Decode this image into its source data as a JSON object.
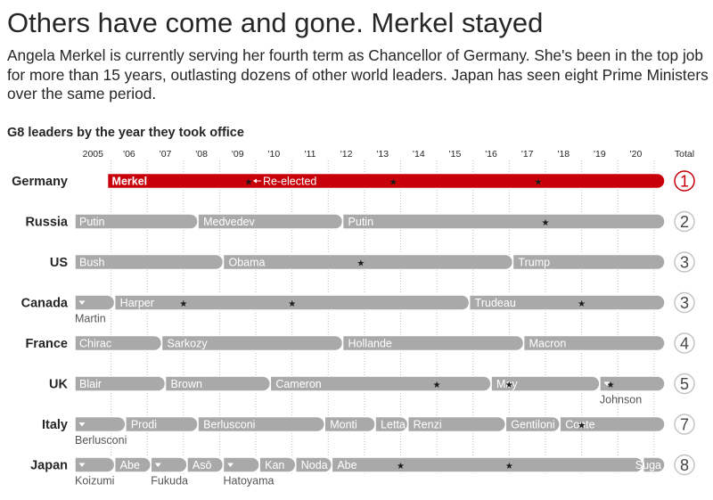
{
  "title": "Others have come and gone. Merkel stayed",
  "subtitle": "Angela Merkel is currently serving her fourth term as Chancellor of Germany. She's been in the top job for more than 15 years, outlasting dozens of other world leaders. Japan has seen eight Prime Ministers over the same period.",
  "chart_label": "G8 leaders by the year they took office",
  "colors": {
    "highlight": "#c8000a",
    "bar": "#a9a9a9",
    "text": "#262626",
    "grid": "#bdbdbd",
    "sublabel": "#555555"
  },
  "chart_data": {
    "type": "timeline",
    "x_ticks": [
      "2005",
      "'06",
      "'07",
      "'08",
      "'09",
      "'10",
      "'11",
      "'12",
      "'13",
      "'14",
      "'15",
      "'16",
      "'17",
      "'18",
      "'19",
      "'20"
    ],
    "total_header": "Total",
    "xlim": [
      2005.0,
      2021.3
    ],
    "star_symbol": "★",
    "reelected_label": "Re-elected",
    "countries": [
      {
        "name": "Germany",
        "total": "1",
        "highlight": true,
        "leaders": [
          {
            "name": "Merkel",
            "start": 2005.9,
            "end": 2021.3
          }
        ],
        "stars": [
          2009.8,
          2013.8,
          2017.8
        ],
        "reelected_at": 2009.8
      },
      {
        "name": "Russia",
        "total": "2",
        "leaders": [
          {
            "name": "Putin",
            "start": 2005.0,
            "end": 2008.4
          },
          {
            "name": "Medvedev",
            "start": 2008.4,
            "end": 2012.4
          },
          {
            "name": "Putin",
            "start": 2012.4,
            "end": 2021.3
          }
        ],
        "stars": [
          2018.0
        ]
      },
      {
        "name": "US",
        "total": "3",
        "leaders": [
          {
            "name": "Bush",
            "start": 2005.0,
            "end": 2009.1
          },
          {
            "name": "Obama",
            "start": 2009.1,
            "end": 2017.1
          },
          {
            "name": "Trump",
            "start": 2017.1,
            "end": 2021.3
          }
        ],
        "stars": [
          2012.9
        ]
      },
      {
        "name": "Canada",
        "total": "3",
        "leaders": [
          {
            "name": "",
            "start": 2005.0,
            "end": 2006.1,
            "below": "Martin"
          },
          {
            "name": "Harper",
            "start": 2006.1,
            "end": 2015.9
          },
          {
            "name": "Trudeau",
            "start": 2015.9,
            "end": 2021.3
          }
        ],
        "stars": [
          2008.0,
          2011.0,
          2019.0
        ]
      },
      {
        "name": "France",
        "total": "4",
        "leaders": [
          {
            "name": "Chirac",
            "start": 2005.0,
            "end": 2007.4
          },
          {
            "name": "Sarkozy",
            "start": 2007.4,
            "end": 2012.4
          },
          {
            "name": "Hollande",
            "start": 2012.4,
            "end": 2017.4
          },
          {
            "name": "Macron",
            "start": 2017.4,
            "end": 2021.3
          }
        ],
        "stars": []
      },
      {
        "name": "UK",
        "total": "5",
        "leaders": [
          {
            "name": "Blair",
            "start": 2005.0,
            "end": 2007.5
          },
          {
            "name": "Brown",
            "start": 2007.5,
            "end": 2010.4
          },
          {
            "name": "Cameron",
            "start": 2010.4,
            "end": 2016.5
          },
          {
            "name": "May",
            "start": 2016.5,
            "end": 2019.5
          },
          {
            "name": "",
            "start": 2019.5,
            "end": 2021.3,
            "below": "Johnson"
          }
        ],
        "stars": [
          2015.0,
          2017.0,
          2019.8
        ]
      },
      {
        "name": "Italy",
        "total": "7",
        "leaders": [
          {
            "name": "",
            "start": 2005.0,
            "end": 2006.4,
            "below": "Berlusconi"
          },
          {
            "name": "Prodi",
            "start": 2006.4,
            "end": 2008.4
          },
          {
            "name": "Berlusconi",
            "start": 2008.4,
            "end": 2011.9
          },
          {
            "name": "Monti",
            "start": 2011.9,
            "end": 2013.3
          },
          {
            "name": "Letta",
            "start": 2013.3,
            "end": 2014.2
          },
          {
            "name": "Renzi",
            "start": 2014.2,
            "end": 2016.9
          },
          {
            "name": "Gentiloni",
            "start": 2016.9,
            "end": 2018.4
          },
          {
            "name": "Conte",
            "start": 2018.4,
            "end": 2021.3
          }
        ],
        "stars": [
          2019.0
        ]
      },
      {
        "name": "Japan",
        "total": "8",
        "leaders": [
          {
            "name": "",
            "start": 2005.0,
            "end": 2006.1,
            "below": "Koizumi"
          },
          {
            "name": "Abe",
            "start": 2006.1,
            "end": 2007.1
          },
          {
            "name": "",
            "start": 2007.1,
            "end": 2008.1,
            "below": "Fukuda"
          },
          {
            "name": "Asō",
            "start": 2008.1,
            "end": 2009.1
          },
          {
            "name": "",
            "start": 2009.1,
            "end": 2010.1,
            "below": "Hatoyama"
          },
          {
            "name": "Kan",
            "start": 2010.1,
            "end": 2011.1
          },
          {
            "name": "Noda",
            "start": 2011.1,
            "end": 2012.1
          },
          {
            "name": "Abe",
            "start": 2012.1,
            "end": 2020.7
          },
          {
            "name": "Suga",
            "start": 2020.7,
            "end": 2021.3,
            "align": "right"
          }
        ],
        "stars": [
          2014.0,
          2017.0
        ]
      }
    ]
  }
}
